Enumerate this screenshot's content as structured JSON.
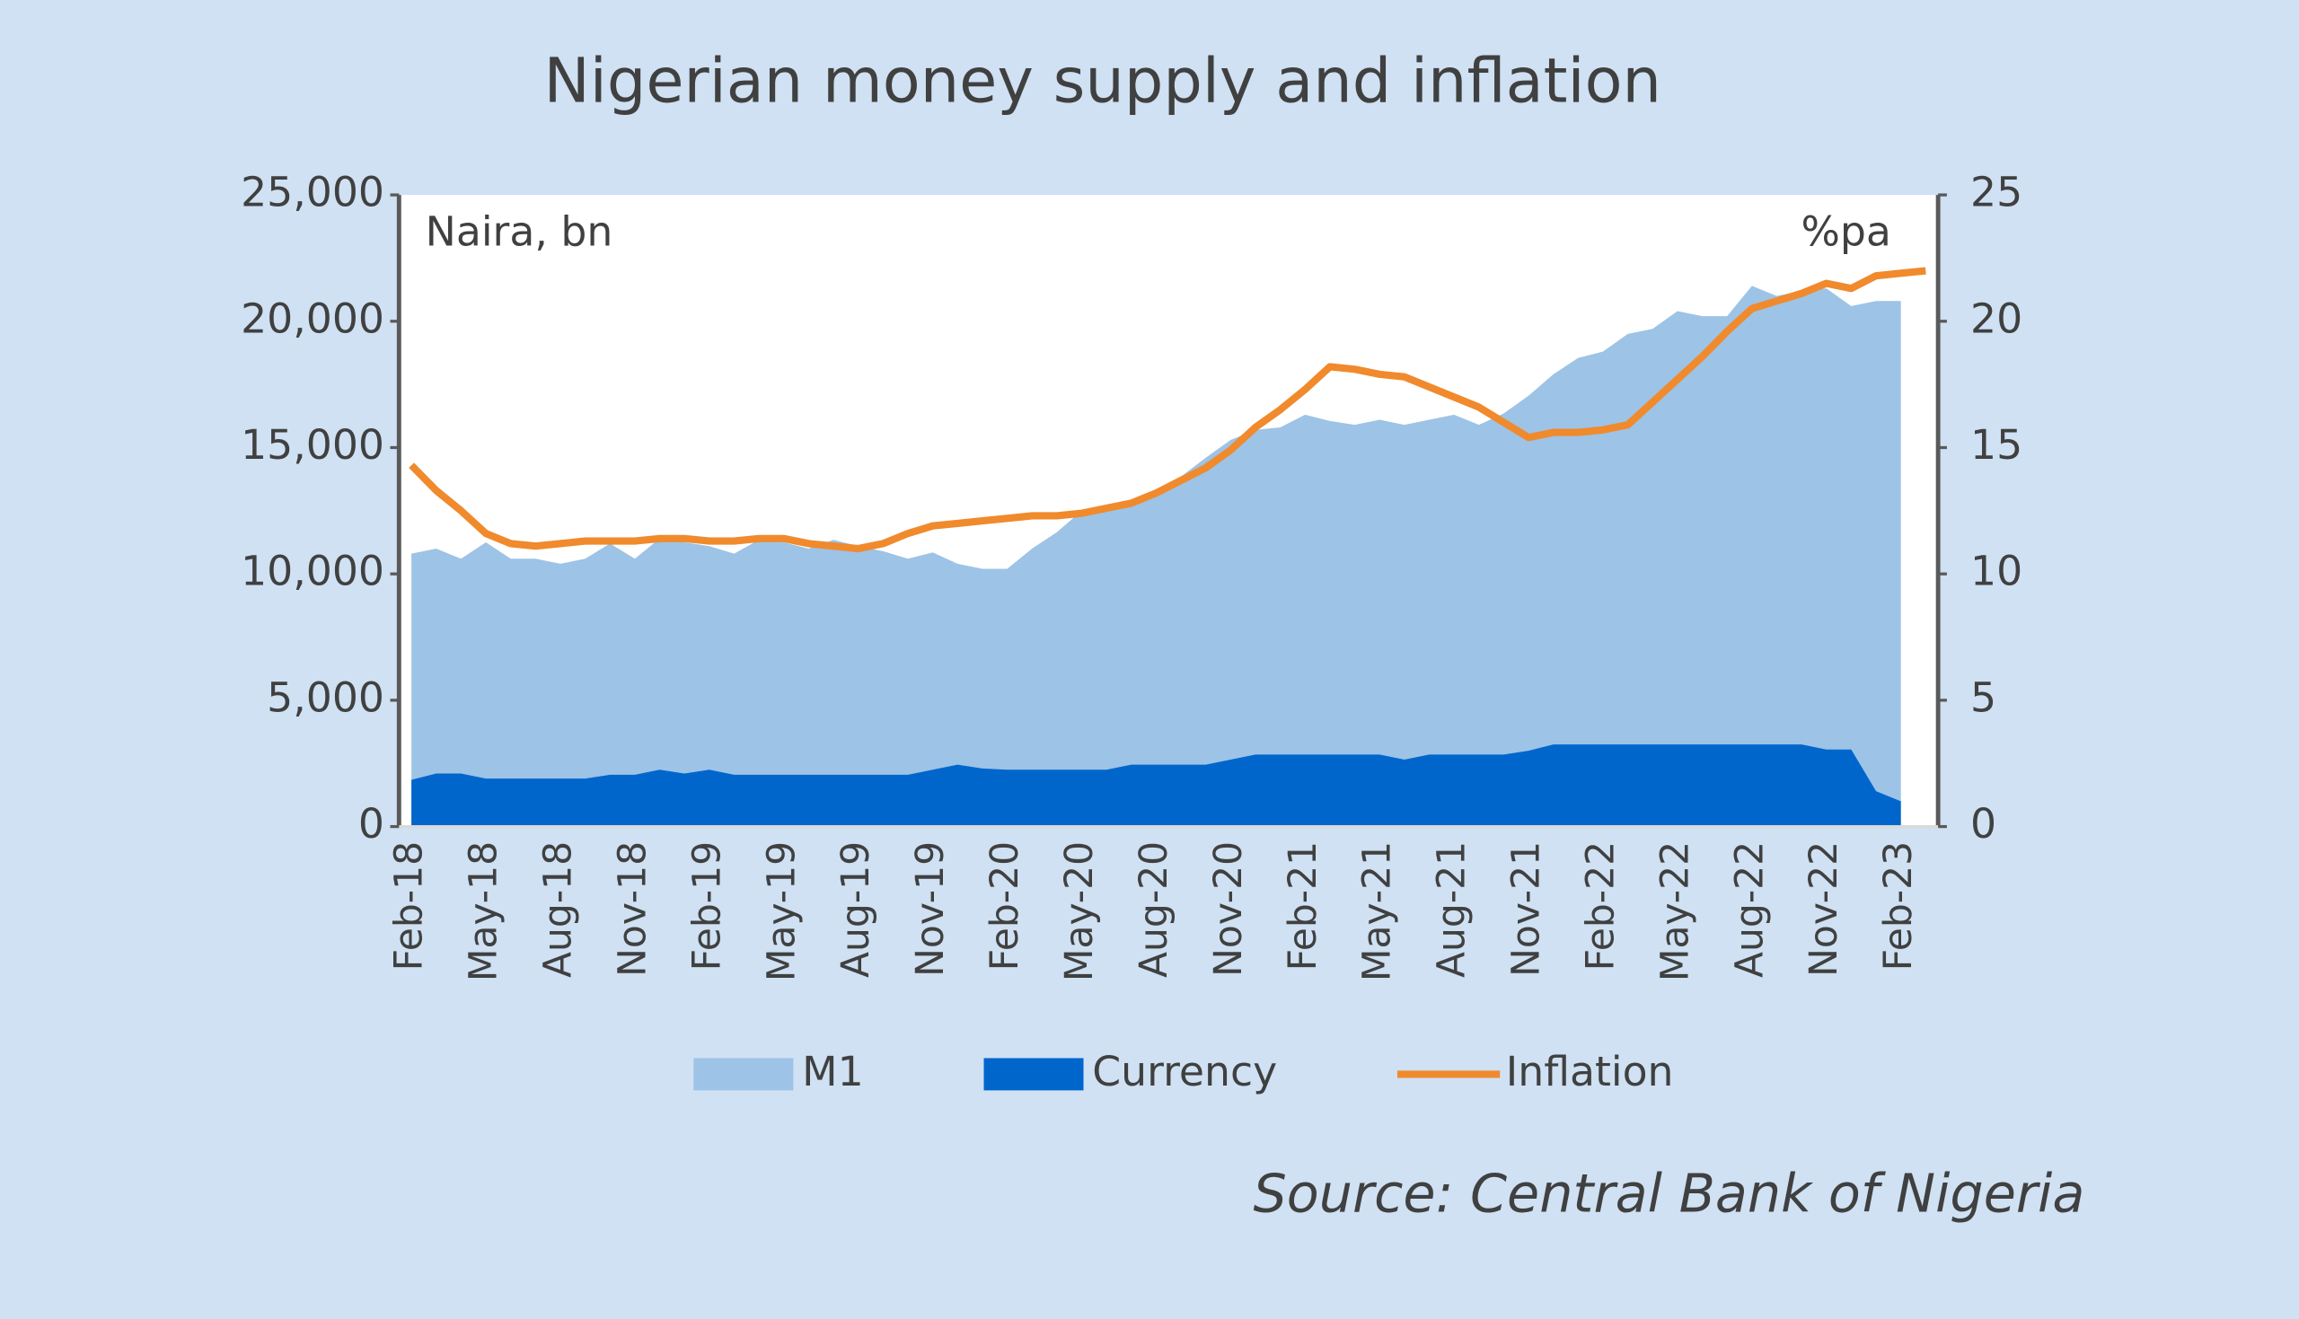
{
  "chart_data": {
    "type": "area",
    "title": "Nigerian money supply and inflation",
    "y_label": "Naira, bn",
    "y2_label": "%pa",
    "source": "Source: Central Bank of Nigeria",
    "categories": [
      "Feb-18",
      null,
      null,
      "May-18",
      null,
      null,
      "Aug-18",
      null,
      null,
      "Nov-18",
      null,
      null,
      "Feb-19",
      null,
      null,
      "May-19",
      null,
      null,
      "Aug-19",
      null,
      null,
      "Nov-19",
      null,
      null,
      "Feb-20",
      null,
      null,
      "May-20",
      null,
      null,
      "Aug-20",
      null,
      null,
      "Nov-20",
      null,
      null,
      "Feb-21",
      null,
      null,
      "May-21",
      null,
      null,
      "Aug-21",
      null,
      null,
      "Nov-21",
      null,
      null,
      "Feb-22",
      null,
      null,
      "May-22",
      null,
      null,
      "Aug-22",
      null,
      null,
      "Nov-22",
      null,
      null,
      "Feb-23",
      null
    ],
    "series": [
      {
        "name": "M1",
        "type": "area",
        "color": "#9dc3e6",
        "values": [
          10800,
          11000,
          10600,
          11250,
          10600,
          10600,
          10400,
          10600,
          11200,
          10600,
          11400,
          11250,
          11100,
          10800,
          11350,
          11250,
          11000,
          11350,
          11100,
          10900,
          10600,
          10850,
          10400,
          10200,
          10200,
          11000,
          11650,
          12500,
          12500,
          12800,
          13300,
          13850,
          14600,
          15300,
          15700,
          15800,
          16300,
          16050,
          15900,
          16100,
          15900,
          16100,
          16300,
          15900,
          16350,
          17050,
          17900,
          18550,
          18800,
          19500,
          19700,
          20400,
          20200,
          20200,
          21400,
          21000,
          21200,
          21300,
          20600,
          20800,
          20800,
          null
        ]
      },
      {
        "name": "Currency",
        "type": "area",
        "color": "#0066cc",
        "values": [
          1850,
          2100,
          2100,
          1900,
          1900,
          1900,
          1900,
          1900,
          2050,
          2050,
          2250,
          2100,
          2250,
          2050,
          2050,
          2050,
          2050,
          2050,
          2050,
          2050,
          2050,
          2250,
          2450,
          2300,
          2250,
          2250,
          2250,
          2250,
          2250,
          2450,
          2450,
          2450,
          2450,
          2650,
          2850,
          2850,
          2850,
          2850,
          2850,
          2850,
          2650,
          2850,
          2850,
          2850,
          2850,
          3000,
          3250,
          3250,
          3250,
          3250,
          3250,
          3250,
          3250,
          3250,
          3250,
          3250,
          3250,
          3050,
          3050,
          1400,
          1000,
          null
        ]
      },
      {
        "name": "Inflation",
        "type": "line",
        "axis": "y2",
        "color": "#f08a2c",
        "values": [
          14.3,
          13.3,
          12.5,
          11.6,
          11.2,
          11.1,
          11.2,
          11.3,
          11.3,
          11.3,
          11.4,
          11.4,
          11.3,
          11.3,
          11.4,
          11.4,
          11.2,
          11.1,
          11.0,
          11.2,
          11.6,
          11.9,
          12.0,
          12.1,
          12.2,
          12.3,
          12.3,
          12.4,
          12.6,
          12.8,
          13.2,
          13.7,
          14.2,
          14.9,
          15.8,
          16.5,
          17.3,
          18.2,
          18.1,
          17.9,
          17.8,
          17.4,
          17.0,
          16.6,
          16.0,
          15.4,
          15.6,
          15.6,
          15.7,
          15.9,
          16.8,
          17.7,
          18.6,
          19.6,
          20.5,
          20.8,
          21.1,
          21.5,
          21.3,
          21.8,
          21.9,
          22.0
        ]
      }
    ],
    "ylim": [
      0,
      25000
    ],
    "yticks": [
      0,
      {
        "value": 5000,
        "label": "5,000"
      },
      {
        "value": 10000,
        "label": "10,000"
      },
      {
        "value": 15000,
        "label": "15,000"
      },
      {
        "value": 20000,
        "label": "20,000"
      },
      {
        "value": 25000,
        "label": "25,000"
      }
    ],
    "y2lim": [
      0,
      25
    ],
    "y2ticks": [
      0,
      5,
      10,
      15,
      20,
      25
    ],
    "grid": false
  }
}
